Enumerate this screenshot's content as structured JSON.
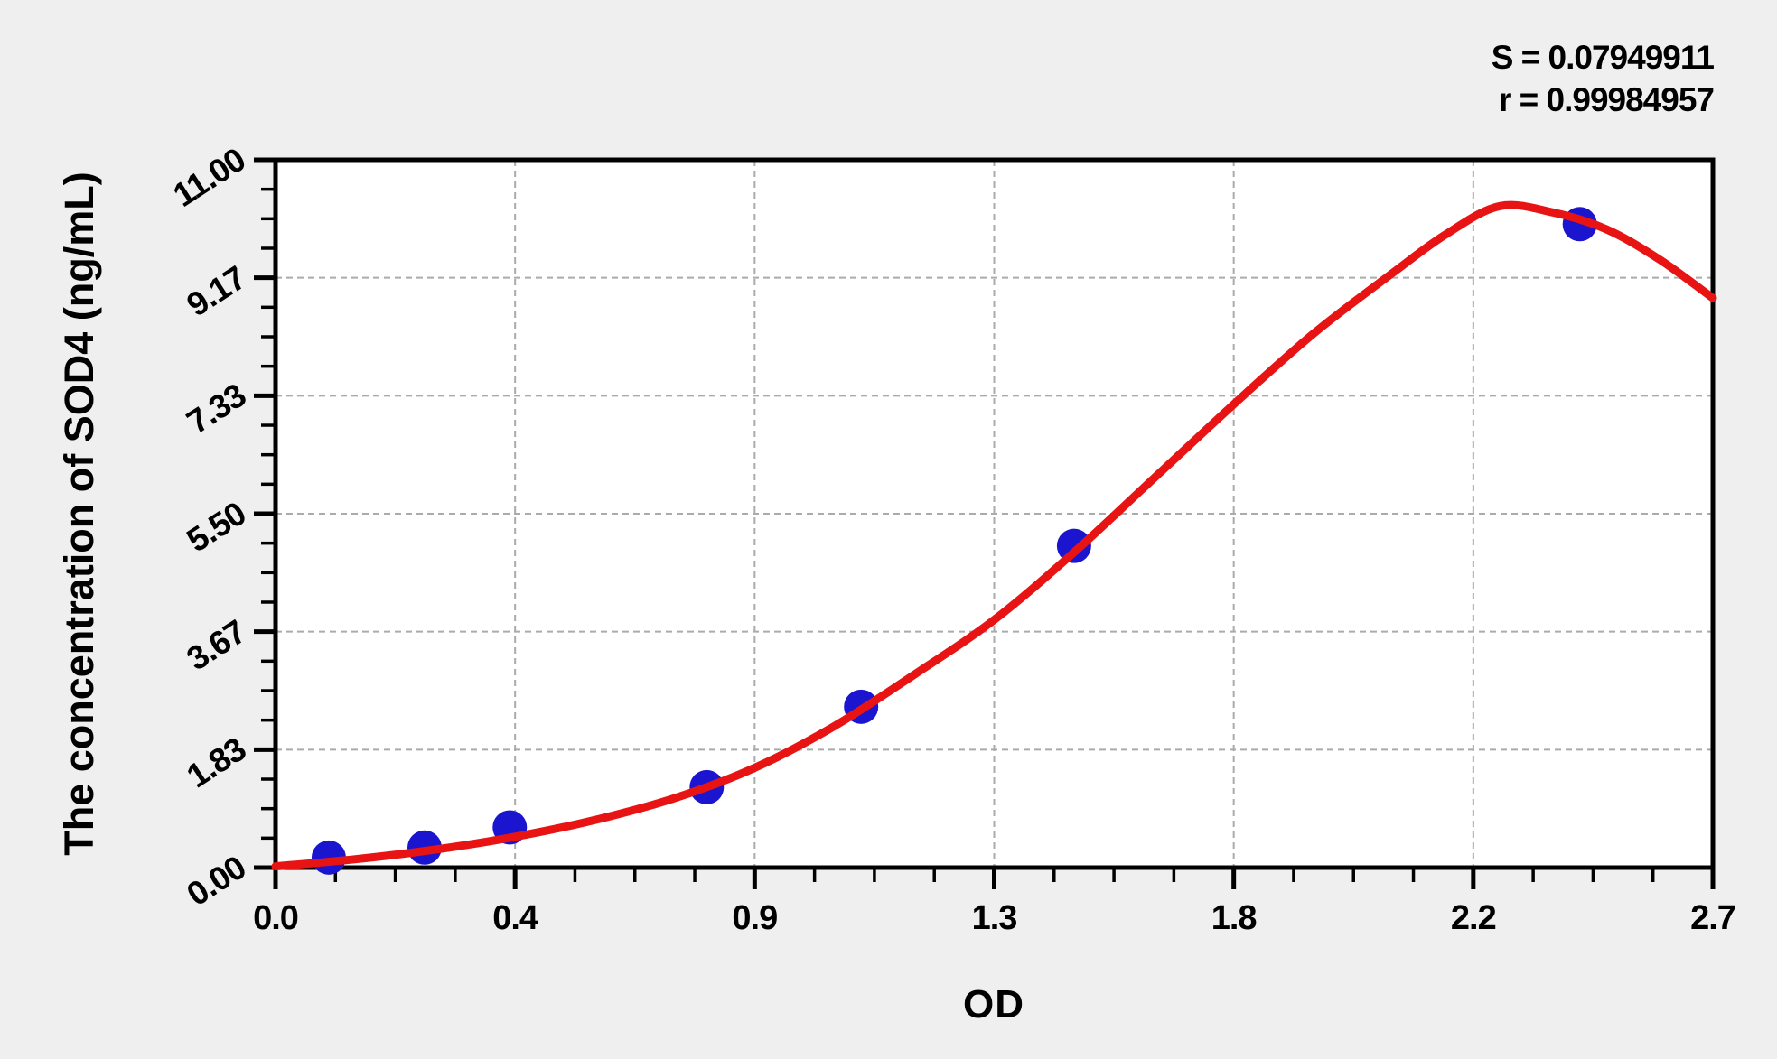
{
  "stats": {
    "s_line": "S = 0.07949911",
    "r_line": "r = 0.99984957"
  },
  "chart_data": {
    "type": "scatter",
    "title": "",
    "xlabel": "OD",
    "ylabel": "The concentration of SOD4 (ng/mL)",
    "xlim": [
      0,
      2.7
    ],
    "ylim": [
      0,
      11
    ],
    "grid": {
      "style": "dashed",
      "at_major_ticks": true
    },
    "legend": "none",
    "x_ticks": {
      "values": [
        0,
        0.45,
        0.9,
        1.35,
        1.8,
        2.25,
        2.7
      ],
      "labels": [
        "0.0",
        "0.4",
        "0.9",
        "1.3",
        "1.8",
        "2.2",
        "2.7"
      ],
      "minor_per_interval": 3
    },
    "y_ticks": {
      "values": [
        0,
        1.833,
        3.667,
        5.5,
        7.333,
        9.167,
        11
      ],
      "labels": [
        "0.00",
        "1.83",
        "3.67",
        "5.50",
        "7.33",
        "9.17",
        "11.00"
      ],
      "minor_per_interval": 3
    },
    "series": [
      {
        "name": "standard-points",
        "type": "scatter",
        "od": [
          0.1,
          0.28,
          0.44,
          0.81,
          1.1,
          1.5,
          2.45
        ],
        "concentration": [
          0.156,
          0.312,
          0.625,
          1.25,
          2.5,
          5.0,
          10.0
        ]
      },
      {
        "name": "fit-curve",
        "type": "line",
        "points": [
          [
            0.0,
            0.02
          ],
          [
            0.15,
            0.13
          ],
          [
            0.3,
            0.28
          ],
          [
            0.45,
            0.48
          ],
          [
            0.6,
            0.74
          ],
          [
            0.75,
            1.08
          ],
          [
            0.9,
            1.55
          ],
          [
            1.05,
            2.2
          ],
          [
            1.2,
            3.0
          ],
          [
            1.35,
            3.85
          ],
          [
            1.5,
            4.9
          ],
          [
            1.65,
            6.05
          ],
          [
            1.8,
            7.2
          ],
          [
            1.95,
            8.3
          ],
          [
            2.1,
            9.25
          ],
          [
            2.2,
            9.85
          ],
          [
            2.3,
            10.28
          ],
          [
            2.4,
            10.18
          ],
          [
            2.5,
            9.92
          ],
          [
            2.6,
            9.45
          ],
          [
            2.7,
            8.85
          ]
        ]
      }
    ],
    "fit_stats": {
      "S": 0.07949911,
      "r": 0.99984957
    },
    "colors": {
      "curve": "#e81414",
      "point": "#1b15cf",
      "axis": "#000000",
      "grid": "#ababab",
      "plot_background": "#ffffff",
      "figure_background": "#efefef"
    }
  }
}
